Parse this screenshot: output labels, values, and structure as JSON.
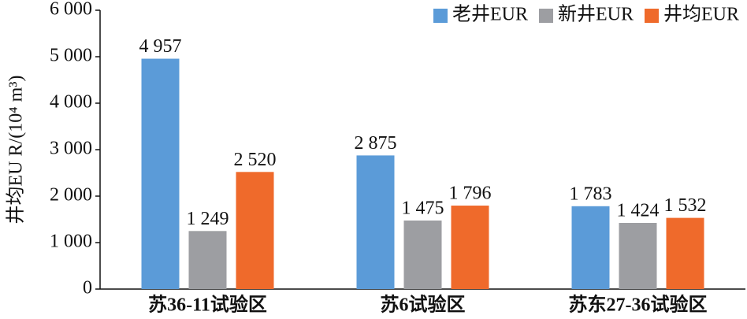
{
  "chart_data": {
    "type": "bar",
    "y_label": "井均EU R/(10⁴ m³)",
    "categories": [
      "苏36-11试验区",
      "苏6试验区",
      "苏东27-36试验区"
    ],
    "series": [
      {
        "name": "老井EUR",
        "color": "#5b9bd8",
        "values": [
          4957,
          2875,
          1783
        ],
        "value_labels": [
          "4 957",
          "2 875",
          "1 783"
        ]
      },
      {
        "name": "新井EUR",
        "color": "#9d9ea2",
        "values": [
          1249,
          1475,
          1424
        ],
        "value_labels": [
          "1 249",
          "1 475",
          "1 424"
        ]
      },
      {
        "name": "井均EUR",
        "color": "#ef6a2b",
        "values": [
          2520,
          1796,
          1532
        ],
        "value_labels": [
          "2 520",
          "1 796",
          "1 532"
        ]
      }
    ],
    "ylim": [
      0,
      6000
    ],
    "yticks": [
      {
        "value": 0,
        "label": "0"
      },
      {
        "value": 1000,
        "label": "1 000"
      },
      {
        "value": 2000,
        "label": "2 000"
      },
      {
        "value": 3000,
        "label": "3 000"
      },
      {
        "value": 4000,
        "label": "4 000"
      },
      {
        "value": 5000,
        "label": "5 000"
      },
      {
        "value": 6000,
        "label": "6 000"
      }
    ],
    "legend": "top-right",
    "grid": false
  }
}
